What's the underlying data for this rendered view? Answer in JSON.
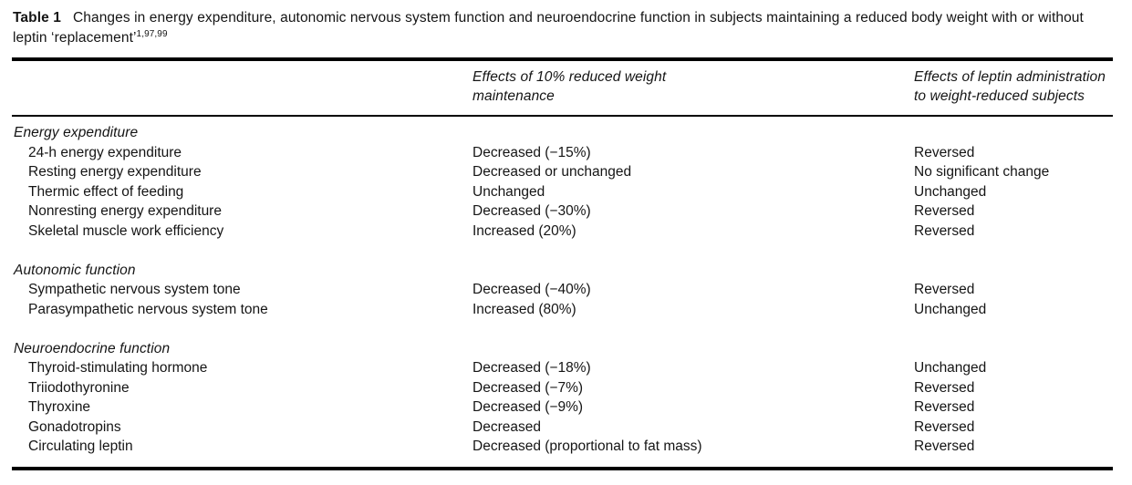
{
  "caption": {
    "label": "Table 1",
    "text": "Changes in energy expenditure, autonomic nervous system function and neuroendocrine function in subjects maintaining a reduced body weight with or without leptin ‘replacement’",
    "refs": "1,97,99"
  },
  "header": {
    "col2": "Effects of 10% reduced weight maintenance",
    "col3": "Effects of leptin administration to weight-reduced subjects"
  },
  "sections": [
    {
      "title": "Energy expenditure",
      "rows": [
        {
          "label": "24-h energy expenditure",
          "reduced_weight": "Decreased (−15%)",
          "leptin": "Reversed"
        },
        {
          "label": "Resting energy expenditure",
          "reduced_weight": "Decreased or unchanged",
          "leptin": "No significant change"
        },
        {
          "label": "Thermic effect of feeding",
          "reduced_weight": "Unchanged",
          "leptin": "Unchanged"
        },
        {
          "label": "Nonresting energy expenditure",
          "reduced_weight": "Decreased (−30%)",
          "leptin": "Reversed"
        },
        {
          "label": "Skeletal muscle work efficiency",
          "reduced_weight": "Increased (20%)",
          "leptin": "Reversed"
        }
      ]
    },
    {
      "title": "Autonomic function",
      "rows": [
        {
          "label": "Sympathetic nervous system tone",
          "reduced_weight": "Decreased (−40%)",
          "leptin": "Reversed"
        },
        {
          "label": "Parasympathetic nervous system tone",
          "reduced_weight": "Increased (80%)",
          "leptin": "Unchanged"
        }
      ]
    },
    {
      "title": "Neuroendocrine function",
      "rows": [
        {
          "label": "Thyroid-stimulating hormone",
          "reduced_weight": "Decreased (−18%)",
          "leptin": "Unchanged"
        },
        {
          "label": "Triiodothyronine",
          "reduced_weight": "Decreased (−7%)",
          "leptin": "Reversed"
        },
        {
          "label": "Thyroxine",
          "reduced_weight": "Decreased (−9%)",
          "leptin": "Reversed"
        },
        {
          "label": "Gonadotropins",
          "reduced_weight": "Decreased",
          "leptin": "Reversed"
        },
        {
          "label": "Circulating leptin",
          "reduced_weight": "Decreased (proportional to fat mass)",
          "leptin": "Reversed"
        }
      ]
    }
  ]
}
